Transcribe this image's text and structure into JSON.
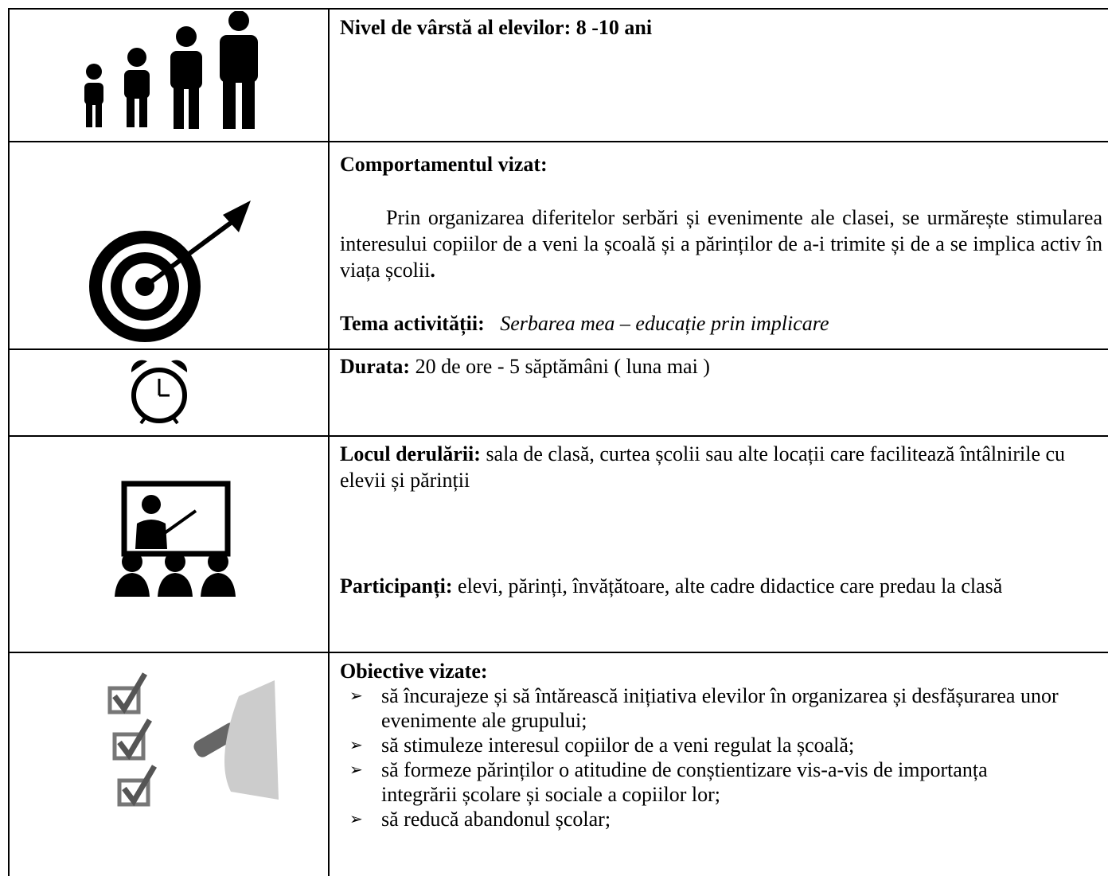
{
  "rows": [
    {
      "heading": "Nivel de vârstă al elevilor: 8 -10 ani"
    },
    {
      "heading": "Comportamentul vizat:",
      "paragraph": "Prin organizarea diferitelor serbări și evenimente ale clasei, se urmărește stimularea interesului copiilor de a veni la școală și a părinților de a-i trimite și de a se implica activ în viața școlii",
      "paragraph_end": ".",
      "theme_label": "Tema activității:",
      "theme": "Serbarea mea – educație prin implicare"
    },
    {
      "label": "Durata:",
      "text": "20 de ore - 5 săptămâni ( luna mai )"
    },
    {
      "label": "Locul derulării:",
      "text": "sala de clasă, curtea școlii sau alte locații care facilitează întâlnirile cu elevii și părinții",
      "label2": "Participanți:",
      "text2": "elevi, părinți, învățătoare, alte cadre didactice care predau la clasă"
    },
    {
      "heading": "Obiective vizate:",
      "items": [
        "să încurajeze și să întărească inițiativa elevilor în organizarea și desfășurarea unor evenimente ale grupului;",
        "să stimuleze interesul copiilor de a veni regulat la școală;",
        "să formeze părinților o atitudine de conștientizare vis-a-vis de importanța integrării școlare și sociale a copiilor lor;",
        "să reducă abandonul școlar;"
      ]
    }
  ]
}
